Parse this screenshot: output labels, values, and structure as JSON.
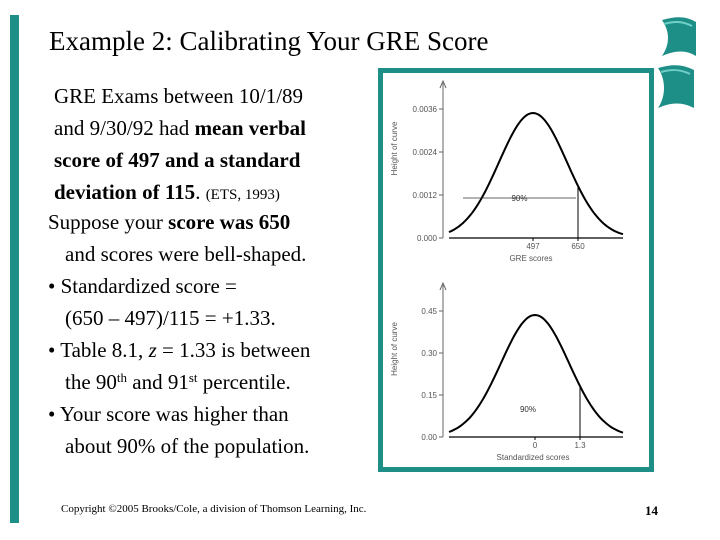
{
  "title": "Example 2:  Calibrating Your GRE Score",
  "intro": {
    "p1": "GRE Exams between 10/1/89",
    "p2": "and 9/30/92 had ",
    "p2b": "mean verbal",
    "p3": "score of 497 and a standard",
    "p4": "deviation of 115",
    "p4b": ". ",
    "p4c": "(ETS, 1993)"
  },
  "body": {
    "l1a": "Suppose your ",
    "l1b": "score was 650",
    "l2": "and scores were bell-shaped.",
    "b1a": "• Standardized score =",
    "b1b": "(650 – 497)/115 = +1.33.",
    "b2a": "• Table 8.1, ",
    "b2z": "z",
    "b2b": " = 1.33 is between",
    "b2c": "the 90",
    "b2sup1": "th",
    "b2d": " and 91",
    "b2sup2": "st",
    "b2e": " percentile.",
    "b3a": "• Your score was higher than",
    "b3b": "about 90% of the population."
  },
  "chart_data": [
    {
      "type": "area",
      "title": "",
      "xlabel": "GRE scores",
      "ylabel": "Height of curve",
      "y_ticks": [
        "0.000",
        "0.0012",
        "0.0024",
        "0.0036"
      ],
      "x_ticks": [
        "497",
        "650"
      ],
      "mean": 497,
      "sd": 115,
      "shaded_percent_label": "90%"
    },
    {
      "type": "area",
      "title": "",
      "xlabel": "Standardized scores",
      "ylabel": "Height of curve",
      "y_ticks": [
        "0.00",
        "0.15",
        "0.30",
        "0.45"
      ],
      "x_ticks": [
        "0",
        "1.3"
      ],
      "mean": 0,
      "sd": 1,
      "shaded_percent_label": "90%"
    }
  ],
  "footer": {
    "copyright": "Copyright ©2005 Brooks/Cole, a division of Thomson Learning, Inc.",
    "page": "14"
  },
  "colors": {
    "accent": "#1e8f86",
    "ribbon": "#2aa39a"
  }
}
